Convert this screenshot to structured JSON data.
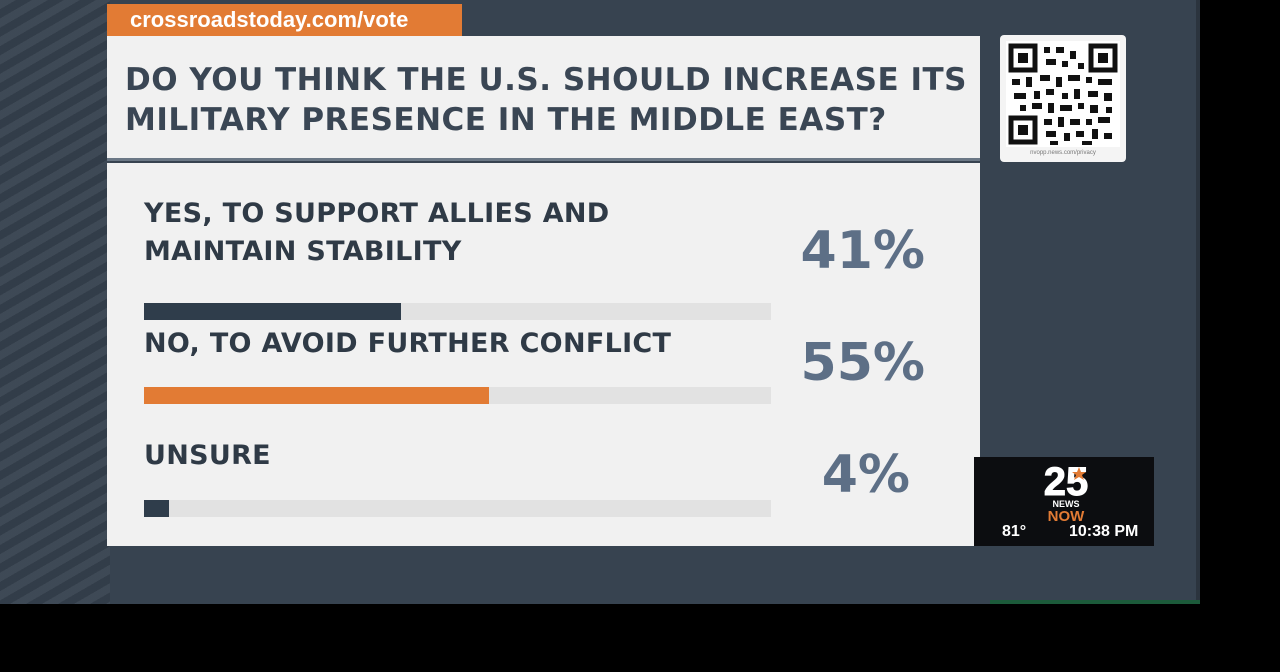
{
  "url_tab": {
    "text": "crossroadstoday.com/vote"
  },
  "poll": {
    "question": "DO YOU THINK THE U.S. SHOULD INCREASE ITS MILITARY PRESENCE IN THE MIDDLE EAST?",
    "options": [
      {
        "label": "YES, TO SUPPORT ALLIES AND MAINTAIN STABILITY",
        "percent_text": "41%",
        "percent": 41,
        "bar_color": "#2f3d4b"
      },
      {
        "label": "NO, TO AVOID FURTHER CONFLICT",
        "percent_text": "55%",
        "percent": 55,
        "bar_color": "#e27b34"
      },
      {
        "label": "UNSURE",
        "percent_text": "4%",
        "percent": 4,
        "bar_color": "#2f3d4b"
      }
    ]
  },
  "qr": {
    "icon": "qr-code-icon",
    "caption": "nvopp.news.com/privacy"
  },
  "bug": {
    "logo_icon": "25-news-now-logo",
    "logo_text": "25 NEWS NOW",
    "temperature": "81°",
    "time": "10:38 PM"
  },
  "colors": {
    "background": "#374350",
    "panel": "#f1f1f1",
    "accent": "#e27b34",
    "text_dark": "#2f3a46",
    "percent_text": "#5d6f86",
    "bar_track": "#e2e2e2"
  }
}
